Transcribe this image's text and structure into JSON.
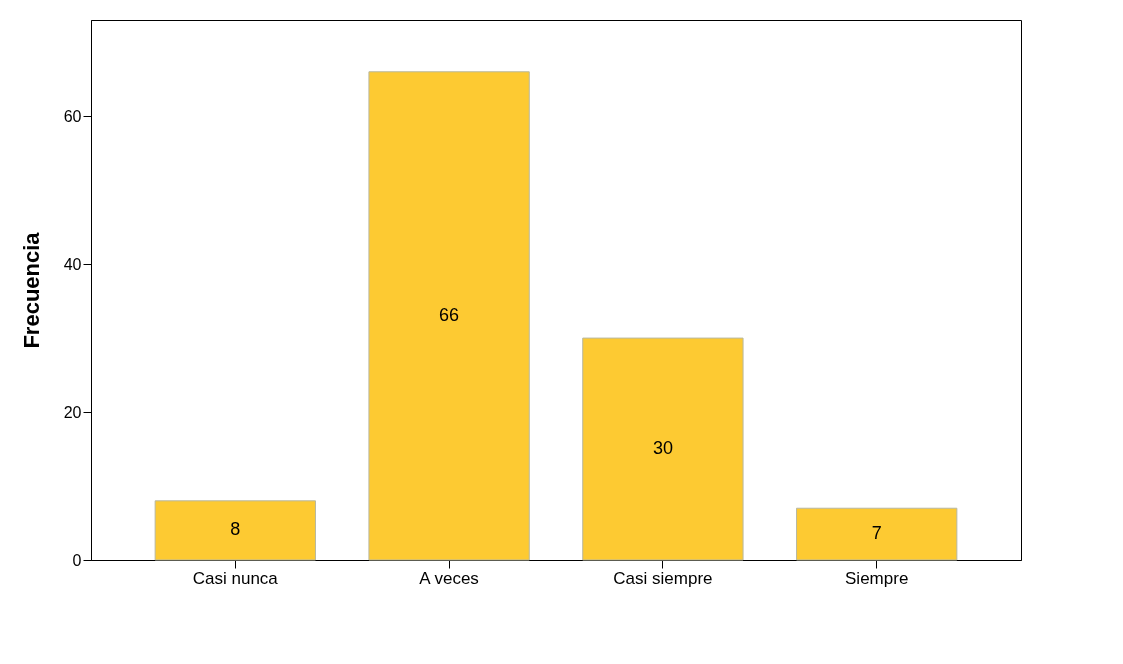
{
  "chart_data": {
    "type": "bar",
    "ylabel": "Frecuencia",
    "categories": [
      "Casi nunca",
      "A veces",
      "Casi siempre",
      "Siempre"
    ],
    "values": [
      8,
      66,
      30,
      7
    ],
    "color": "#fdca32",
    "ylim": [
      0,
      73
    ],
    "yticks": [
      0,
      20,
      40,
      60
    ],
    "data_labels": true,
    "grid": false
  }
}
